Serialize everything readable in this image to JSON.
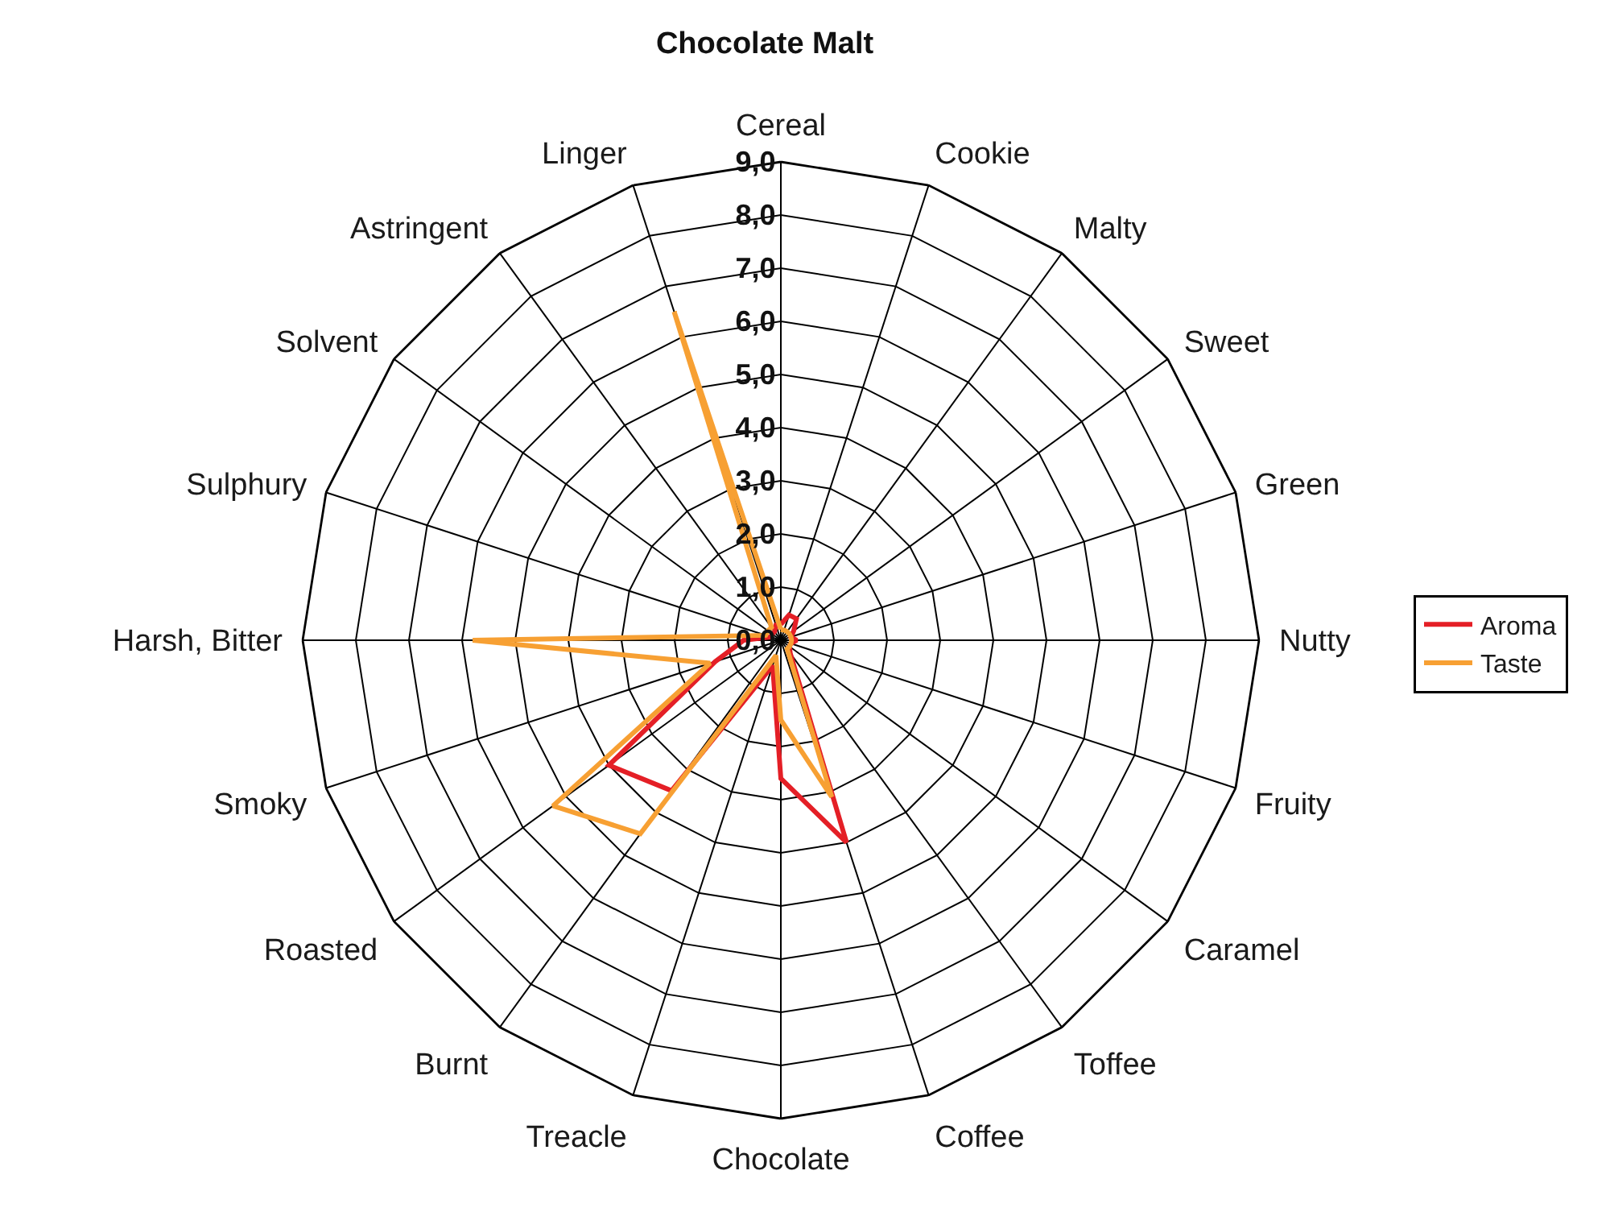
{
  "chart_data": {
    "type": "radar",
    "title": "Chocolate Malt",
    "categories": [
      "Cereal",
      "Cookie",
      "Malty",
      "Sweet",
      "Green",
      "Nutty",
      "Fruity",
      "Caramel",
      "Toffee",
      "Coffee",
      "Chocolate",
      "Treacle",
      "Burnt",
      "Roasted",
      "Smoky",
      "Harsh, Bitter",
      "Sulphury",
      "Solvent",
      "Astringent",
      "Linger"
    ],
    "series": [
      {
        "name": "Aroma",
        "color": "#e41f26",
        "values": [
          0.3,
          0.5,
          0.5,
          0.3,
          0.2,
          0.3,
          0.2,
          0.2,
          0.3,
          4.0,
          2.6,
          0.5,
          3.5,
          4.0,
          1.3,
          0.7,
          0.2,
          0.2,
          0.2,
          0.3
        ]
      },
      {
        "name": "Taste",
        "color": "#f7a033",
        "values": [
          0.2,
          0.2,
          0.2,
          0.2,
          0.2,
          0.2,
          0.2,
          0.2,
          0.2,
          3.1,
          1.5,
          0.3,
          4.5,
          5.3,
          1.4,
          5.8,
          0.3,
          0.3,
          0.3,
          6.5
        ]
      }
    ],
    "ylim": [
      0,
      9
    ],
    "yticks": [
      {
        "value": 0,
        "label": "0,0"
      },
      {
        "value": 1,
        "label": "1,0"
      },
      {
        "value": 2,
        "label": "2,0"
      },
      {
        "value": 3,
        "label": "3,0"
      },
      {
        "value": 4,
        "label": "4,0"
      },
      {
        "value": 5,
        "label": "5,0"
      },
      {
        "value": 6,
        "label": "6,0"
      },
      {
        "value": 7,
        "label": "7,0"
      },
      {
        "value": 8,
        "label": "8,0"
      },
      {
        "value": 9,
        "label": "9,0"
      }
    ],
    "grid": true,
    "legend": "right",
    "marker": "none",
    "line_style": "solid"
  }
}
